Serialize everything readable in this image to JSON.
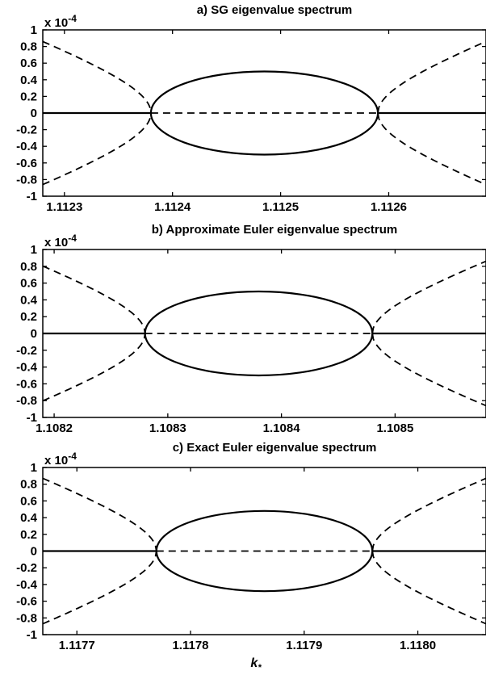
{
  "chart_data": [
    {
      "type": "line",
      "title": "a) SG eigenvalue spectrum",
      "y_multiplier": "x 10",
      "y_exponent": "-4",
      "xlim": [
        1.11228,
        1.11269
      ],
      "ylim": [
        -1,
        1
      ],
      "xticks": [
        {
          "value": 1.1123,
          "label": "1.1123"
        },
        {
          "value": 1.1124,
          "label": "1.1124"
        },
        {
          "value": 1.1125,
          "label": "1.1125"
        },
        {
          "value": 1.1126,
          "label": "1.1126"
        }
      ],
      "yticks": [
        {
          "value": 1,
          "label": "1"
        },
        {
          "value": 0.8,
          "label": "0.8"
        },
        {
          "value": 0.6,
          "label": "0.6"
        },
        {
          "value": 0.4,
          "label": "0.4"
        },
        {
          "value": 0.2,
          "label": "0.2"
        },
        {
          "value": 0,
          "label": "0"
        },
        {
          "value": -0.2,
          "label": "-0.2"
        },
        {
          "value": -0.4,
          "label": "-0.4"
        },
        {
          "value": -0.6,
          "label": "-0.6"
        },
        {
          "value": -0.8,
          "label": "-0.8"
        },
        {
          "value": -1,
          "label": "-1"
        }
      ],
      "crit_points": [
        1.11238,
        1.11259
      ],
      "ellipse_amplitude": 0.5,
      "edge_amplitude": 0.86,
      "series": [
        {
          "style": "solid",
          "description_values": "real part: zero outside, ellipse between critical points"
        },
        {
          "style": "dashed",
          "description_values": "imaginary part: branches outside, zero between critical points"
        }
      ]
    },
    {
      "type": "line",
      "title": "b) Approximate Euler eigenvalue spectrum",
      "y_multiplier": "x 10",
      "y_exponent": "-4",
      "xlim": [
        1.10819,
        1.10858
      ],
      "ylim": [
        -1,
        1
      ],
      "xticks": [
        {
          "value": 1.1082,
          "label": "1.1082"
        },
        {
          "value": 1.1083,
          "label": "1.1083"
        },
        {
          "value": 1.1084,
          "label": "1.1084"
        },
        {
          "value": 1.1085,
          "label": "1.1085"
        }
      ],
      "yticks": [
        {
          "value": 1,
          "label": "1"
        },
        {
          "value": 0.8,
          "label": "0.8"
        },
        {
          "value": 0.6,
          "label": "0.6"
        },
        {
          "value": 0.4,
          "label": "0.4"
        },
        {
          "value": 0.2,
          "label": "0.2"
        },
        {
          "value": 0,
          "label": "0"
        },
        {
          "value": -0.2,
          "label": "-0.2"
        },
        {
          "value": -0.4,
          "label": "-0.4"
        },
        {
          "value": -0.6,
          "label": "-0.6"
        },
        {
          "value": -0.8,
          "label": "-0.8"
        },
        {
          "value": -1,
          "label": "-1"
        }
      ],
      "crit_points": [
        1.10828,
        1.10848
      ],
      "ellipse_amplitude": 0.5,
      "edge_amplitude": 0.86,
      "series": [
        {
          "style": "solid"
        },
        {
          "style": "dashed"
        }
      ]
    },
    {
      "type": "line",
      "title": "c) Exact Euler eigenvalue spectrum",
      "y_multiplier": "x 10",
      "y_exponent": "-4",
      "xlim": [
        1.11767,
        1.11806
      ],
      "ylim": [
        -1,
        1
      ],
      "xticks": [
        {
          "value": 1.1177,
          "label": "1.1177"
        },
        {
          "value": 1.1178,
          "label": "1.1178"
        },
        {
          "value": 1.1179,
          "label": "1.1179"
        },
        {
          "value": 1.118,
          "label": "1.1180"
        }
      ],
      "yticks": [
        {
          "value": 1,
          "label": "1"
        },
        {
          "value": 0.8,
          "label": "0.8"
        },
        {
          "value": 0.6,
          "label": "0.6"
        },
        {
          "value": 0.4,
          "label": "0.4"
        },
        {
          "value": 0.2,
          "label": "0.2"
        },
        {
          "value": 0,
          "label": "0"
        },
        {
          "value": -0.2,
          "label": "-0.2"
        },
        {
          "value": -0.4,
          "label": "-0.4"
        },
        {
          "value": -0.6,
          "label": "-0.6"
        },
        {
          "value": -0.8,
          "label": "-0.8"
        },
        {
          "value": -1,
          "label": "-1"
        }
      ],
      "crit_points": [
        1.11777,
        1.11796
      ],
      "ellipse_amplitude": 0.48,
      "edge_amplitude": 0.87,
      "series": [
        {
          "style": "solid"
        },
        {
          "style": "dashed"
        }
      ]
    }
  ],
  "xlabel": {
    "main": "k",
    "sub": "*"
  }
}
